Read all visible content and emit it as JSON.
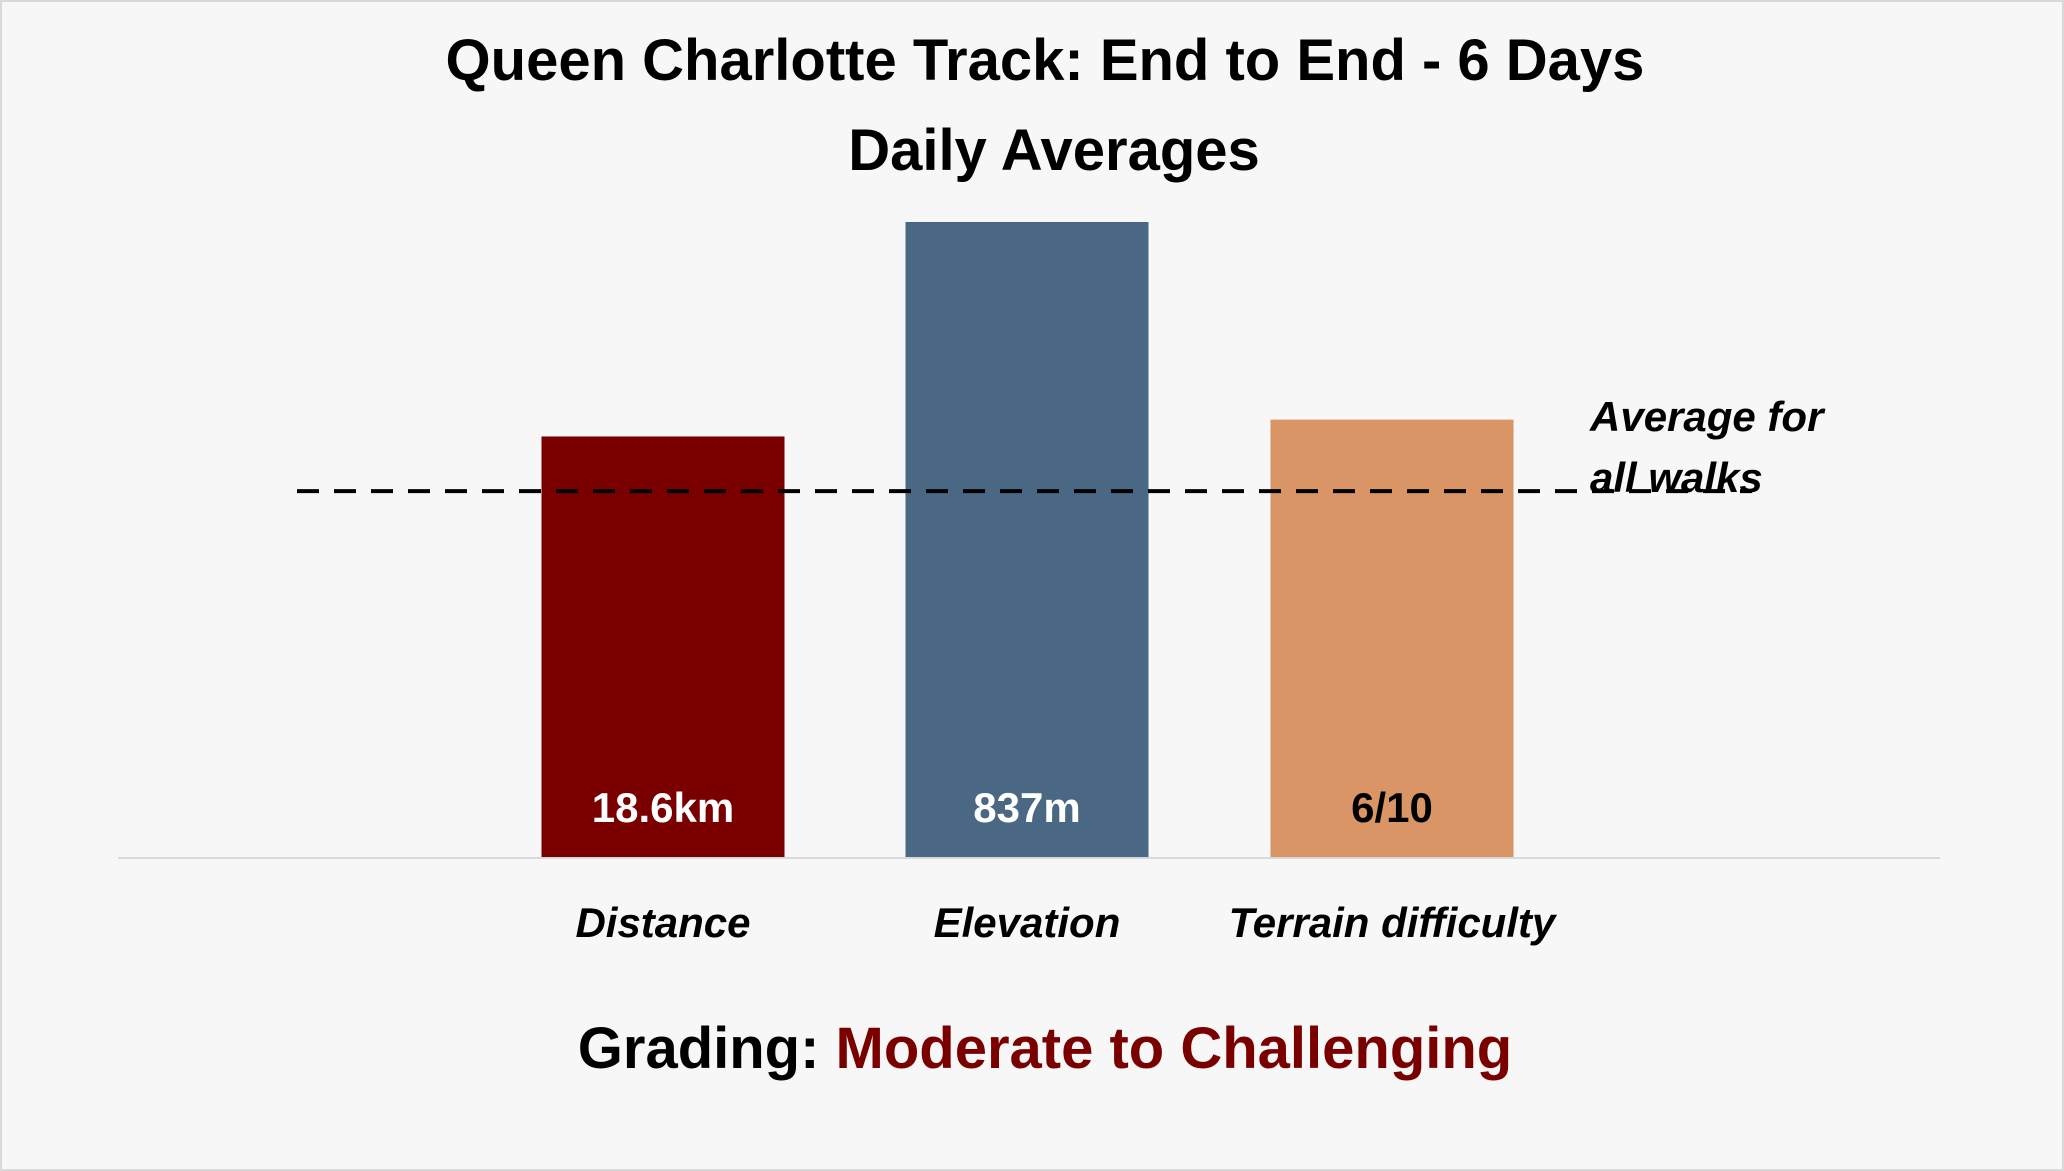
{
  "chart_data": {
    "type": "bar",
    "title_line1": "Queen Charlotte Track: End to End - 6 Days",
    "title_line2": "Daily Averages",
    "categories": [
      "Distance",
      "Elevation",
      "Terrain difficulty"
    ],
    "values_relative_to_average": [
      1.0,
      1.51,
      1.04
    ],
    "data_labels": [
      "18.6km",
      "837m",
      "6/10"
    ],
    "bar_colors": [
      "#7a0000",
      "#4a6884",
      "#d99566"
    ],
    "label_colors": [
      "#ffffff",
      "#ffffff",
      "#000000"
    ],
    "reference_line": {
      "value": 0.87,
      "label_line1": "Average for",
      "label_line2": "all walks",
      "style": "dashed"
    },
    "ylim": [
      0,
      1.6
    ],
    "grid": false,
    "legend": "none"
  },
  "grading": {
    "prefix": "Grading: ",
    "value": "Moderate to Challenging",
    "prefix_color": "#000000",
    "value_color": "#7a0000"
  }
}
